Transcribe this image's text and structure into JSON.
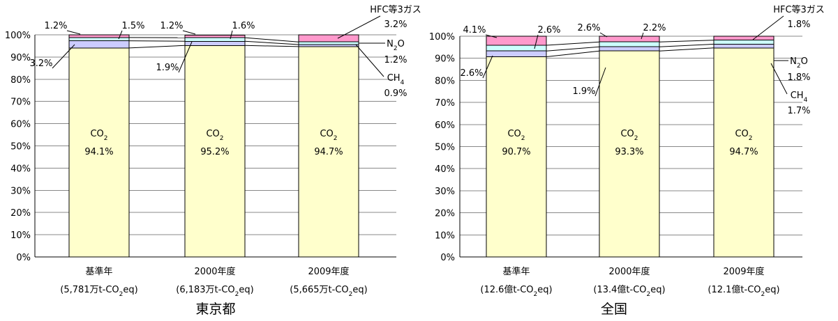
{
  "chart_data": [
    {
      "type": "bar",
      "stacked": true,
      "title": "東京都",
      "ylim": [
        0,
        100
      ],
      "yticks": [
        "0%",
        "10%",
        "20%",
        "30%",
        "40%",
        "50%",
        "60%",
        "70%",
        "80%",
        "90%",
        "100%"
      ],
      "categories": [
        "基準年",
        "2000年度",
        "2009年度"
      ],
      "category_notes": [
        [
          "(5,781万t-CO",
          "2",
          "eq)"
        ],
        [
          "(6,183万t-CO",
          "2",
          "eq)"
        ],
        [
          "(5,665万t-CO",
          "2",
          "eq)"
        ]
      ],
      "series": [
        {
          "name": "CO2",
          "label": [
            "CO",
            "2"
          ],
          "values": [
            94.1,
            95.2,
            94.7
          ],
          "color": "#FFFFCC",
          "value_labels": [
            "94.1%",
            "95.2%",
            "94.7%"
          ]
        },
        {
          "name": "CH4",
          "label": [
            "CH",
            "4"
          ],
          "values": [
            3.2,
            1.9,
            0.9
          ],
          "color": "#CCCCFF",
          "value_labels": [
            "3.2%",
            "1.9%",
            "0.9%"
          ]
        },
        {
          "name": "N2O",
          "label": [
            "N",
            "2",
            "O"
          ],
          "values": [
            1.5,
            1.6,
            1.2
          ],
          "color": "#CCFFFF",
          "value_labels": [
            "1.5%",
            "1.6%",
            "1.2%"
          ]
        },
        {
          "name": "HFC等3ガス",
          "label": [
            "HFC等3ガス"
          ],
          "values": [
            1.2,
            1.2,
            3.2
          ],
          "color": "#FF99CC",
          "value_labels": [
            "1.2%",
            "1.2%",
            "3.2%"
          ]
        }
      ]
    },
    {
      "type": "bar",
      "stacked": true,
      "title": "全国",
      "ylim": [
        0,
        100
      ],
      "yticks": [
        "0%",
        "10%",
        "20%",
        "30%",
        "40%",
        "50%",
        "60%",
        "70%",
        "80%",
        "90%",
        "100%"
      ],
      "categories": [
        "基準年",
        "2000年度",
        "2009年度"
      ],
      "category_notes": [
        [
          "(12.6億t-CO",
          "2",
          "eq)"
        ],
        [
          "(13.4億t-CO",
          "2",
          "eq)"
        ],
        [
          "(12.1億t-CO",
          "2",
          "eq)"
        ]
      ],
      "series": [
        {
          "name": "CO2",
          "label": [
            "CO",
            "2"
          ],
          "values": [
            90.7,
            93.3,
            94.7
          ],
          "color": "#FFFFCC",
          "value_labels": [
            "90.7%",
            "93.3%",
            "94.7%"
          ]
        },
        {
          "name": "CH4",
          "label": [
            "CH",
            "4"
          ],
          "values": [
            2.6,
            1.9,
            1.7
          ],
          "color": "#CCCCFF",
          "value_labels": [
            "2.6%",
            "1.9%",
            "1.7%"
          ]
        },
        {
          "name": "N2O",
          "label": [
            "N",
            "2",
            "O"
          ],
          "values": [
            2.6,
            2.2,
            1.8
          ],
          "color": "#CCFFFF",
          "value_labels": [
            "2.6%",
            "2.2%",
            "1.8%"
          ]
        },
        {
          "name": "HFC等3ガス",
          "label": [
            "HFC等3ガス"
          ],
          "values": [
            4.1,
            2.6,
            1.8
          ],
          "color": "#FF99CC",
          "value_labels": [
            "4.1%",
            "2.6%",
            "1.8%"
          ]
        }
      ]
    }
  ]
}
